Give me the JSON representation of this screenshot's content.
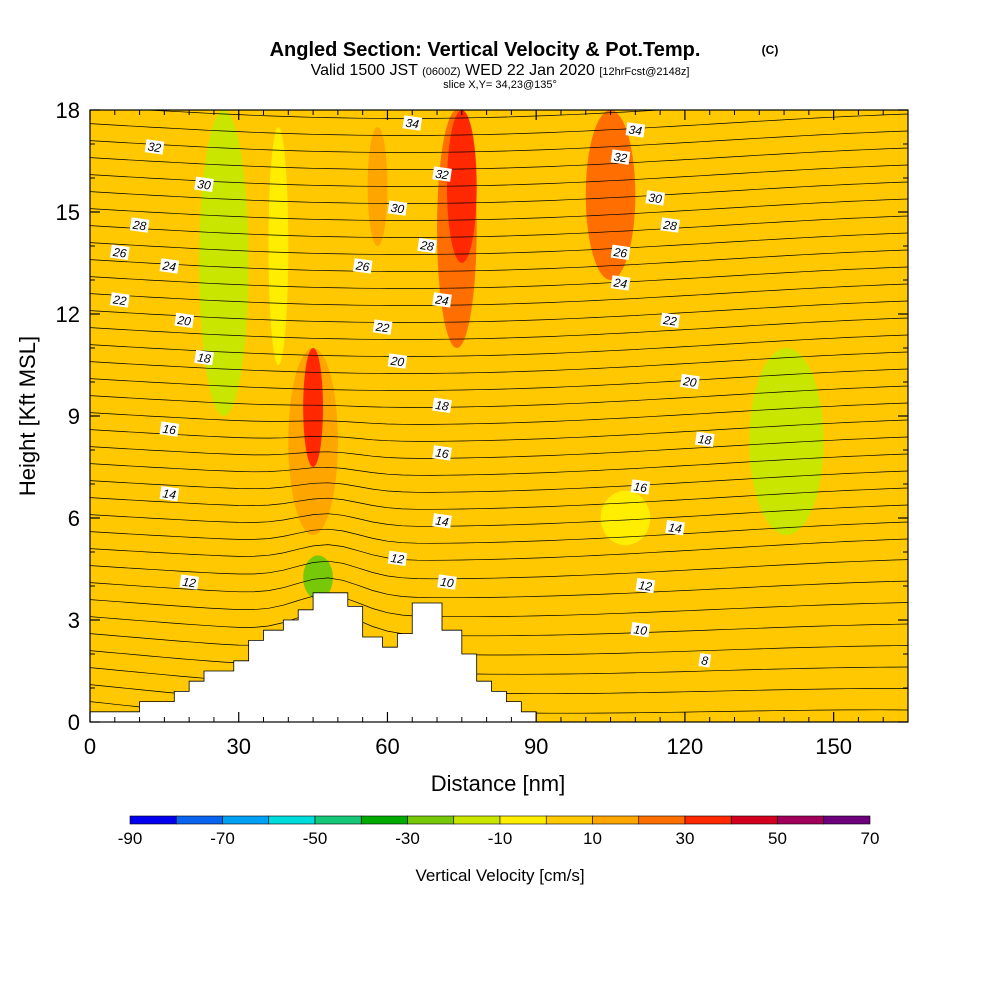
{
  "header": {
    "title": "Angled Section: Vertical Velocity & Pot.Temp.",
    "title_suffix": "(C)",
    "subtitle_pre": "Valid 1500 JST",
    "subtitle_z": "(0600Z)",
    "subtitle_date": "WED 22 Jan 2020",
    "subtitle_fcst": "[12hrFcst@2148z]",
    "slice": "slice X,Y= 34,23@135°"
  },
  "chart_data": {
    "type": "heatmap",
    "title": "Angled Section: Vertical Velocity & Pot.Temp.",
    "xlabel": "Distance [nm]",
    "ylabel": "Height [Kft MSL]",
    "xlim": [
      0,
      165
    ],
    "ylim": [
      0,
      18
    ],
    "x_ticks": [
      0,
      30,
      60,
      90,
      120,
      150
    ],
    "y_ticks": [
      0,
      3,
      6,
      9,
      12,
      15,
      18
    ],
    "colorbar": {
      "label": "Vertical Velocity [cm/s]",
      "boundaries": [
        -90,
        -80,
        -70,
        -60,
        -50,
        -40,
        -30,
        -20,
        -10,
        0,
        10,
        20,
        30,
        40,
        50,
        60,
        70
      ],
      "tick_labels": [
        "-90",
        "-70",
        "-50",
        "-30",
        "-10",
        "10",
        "30",
        "50",
        "70"
      ],
      "colors": [
        "#0000ee",
        "#0a64f0",
        "#00a0f5",
        "#00dcdc",
        "#14c878",
        "#00aa00",
        "#78c80a",
        "#c8e600",
        "#ffee00",
        "#ffc800",
        "#ffa500",
        "#ff6e00",
        "#ff2800",
        "#d2001e",
        "#a0005a",
        "#6e007d"
      ]
    },
    "background_value": 3,
    "velocity_cells": [
      {
        "x": [
          100,
          125
        ],
        "y": [
          14,
          18
        ],
        "value": 8
      },
      {
        "x": [
          3,
          40
        ],
        "y": [
          0,
          18
        ],
        "value": 8
      },
      {
        "x": [
          55,
          62
        ],
        "y": [
          12,
          18
        ],
        "value": 8
      },
      {
        "x": [
          100,
          110
        ],
        "y": [
          13,
          18
        ],
        "value": 22
      },
      {
        "x": [
          70,
          78
        ],
        "y": [
          11,
          18
        ],
        "value": 25
      },
      {
        "x": [
          72,
          78
        ],
        "y": [
          13.5,
          18
        ],
        "value": 35
      },
      {
        "x": [
          56,
          60
        ],
        "y": [
          14,
          17.5
        ],
        "value": 14
      },
      {
        "x": [
          22,
          32
        ],
        "y": [
          9,
          18
        ],
        "value": -12
      },
      {
        "x": [
          25,
          28
        ],
        "y": [
          14,
          17
        ],
        "value": -15
      },
      {
        "x": [
          36,
          40
        ],
        "y": [
          10.5,
          17.5
        ],
        "value": -8
      },
      {
        "x": [
          133,
          148
        ],
        "y": [
          5.5,
          11
        ],
        "value": -12
      },
      {
        "x": [
          103,
          113
        ],
        "y": [
          5.2,
          6.8
        ],
        "value": -6
      },
      {
        "x": [
          40,
          50
        ],
        "y": [
          5.5,
          11
        ],
        "value": 18
      },
      {
        "x": [
          43,
          47
        ],
        "y": [
          7.5,
          11
        ],
        "value": 32
      },
      {
        "x": [
          40,
          52
        ],
        "y": [
          0,
          5
        ],
        "value": 8
      },
      {
        "x": [
          89,
          120
        ],
        "y": [
          0,
          2.2
        ],
        "value": 8
      },
      {
        "x": [
          43,
          49
        ],
        "y": [
          3.6,
          4.9
        ],
        "value": -30
      },
      {
        "x": [
          145,
          165
        ],
        "y": [
          0,
          3.2
        ],
        "value": 8
      }
    ],
    "terrain": [
      [
        0,
        0.3
      ],
      [
        10,
        0.3
      ],
      [
        10,
        0.6
      ],
      [
        17,
        0.6
      ],
      [
        17,
        0.9
      ],
      [
        20,
        0.9
      ],
      [
        20,
        1.2
      ],
      [
        23,
        1.2
      ],
      [
        23,
        1.5
      ],
      [
        29,
        1.5
      ],
      [
        29,
        1.8
      ],
      [
        32,
        1.8
      ],
      [
        32,
        2.4
      ],
      [
        35,
        2.4
      ],
      [
        35,
        2.7
      ],
      [
        39,
        2.7
      ],
      [
        39,
        3.0
      ],
      [
        42,
        3.0
      ],
      [
        42,
        3.3
      ],
      [
        45,
        3.3
      ],
      [
        45,
        3.8
      ],
      [
        52,
        3.8
      ],
      [
        52,
        3.4
      ],
      [
        55,
        3.4
      ],
      [
        55,
        2.5
      ],
      [
        59,
        2.5
      ],
      [
        59,
        2.2
      ],
      [
        62,
        2.2
      ],
      [
        62,
        2.6
      ],
      [
        65,
        2.6
      ],
      [
        65,
        3.5
      ],
      [
        71,
        3.5
      ],
      [
        71,
        2.7
      ],
      [
        75,
        2.7
      ],
      [
        75,
        2.0
      ],
      [
        78,
        2.0
      ],
      [
        78,
        1.2
      ],
      [
        81,
        1.2
      ],
      [
        81,
        0.9
      ],
      [
        84,
        0.9
      ],
      [
        84,
        0.6
      ],
      [
        87,
        0.6
      ],
      [
        87,
        0.3
      ],
      [
        90,
        0.3
      ],
      [
        90,
        0
      ],
      [
        0,
        0
      ]
    ],
    "contour_labels": [
      {
        "text": "34",
        "x": 65,
        "y": 17.6
      },
      {
        "text": "34",
        "x": 110,
        "y": 17.4
      },
      {
        "text": "32",
        "x": 13,
        "y": 16.9
      },
      {
        "text": "32",
        "x": 71,
        "y": 16.1
      },
      {
        "text": "32",
        "x": 107,
        "y": 16.6
      },
      {
        "text": "30",
        "x": 23,
        "y": 15.8
      },
      {
        "text": "30",
        "x": 62,
        "y": 15.1
      },
      {
        "text": "30",
        "x": 114,
        "y": 15.4
      },
      {
        "text": "28",
        "x": 10,
        "y": 14.6
      },
      {
        "text": "28",
        "x": 68,
        "y": 14.0
      },
      {
        "text": "28",
        "x": 117,
        "y": 14.6
      },
      {
        "text": "26",
        "x": 6,
        "y": 13.8
      },
      {
        "text": "26",
        "x": 55,
        "y": 13.4
      },
      {
        "text": "26",
        "x": 107,
        "y": 13.8
      },
      {
        "text": "24",
        "x": 16,
        "y": 13.4
      },
      {
        "text": "24",
        "x": 71,
        "y": 12.4
      },
      {
        "text": "24",
        "x": 107,
        "y": 12.9
      },
      {
        "text": "22",
        "x": 6,
        "y": 12.4
      },
      {
        "text": "22",
        "x": 59,
        "y": 11.6
      },
      {
        "text": "22",
        "x": 117,
        "y": 11.8
      },
      {
        "text": "20",
        "x": 19,
        "y": 11.8
      },
      {
        "text": "20",
        "x": 62,
        "y": 10.6
      },
      {
        "text": "20",
        "x": 121,
        "y": 10.0
      },
      {
        "text": "18",
        "x": 23,
        "y": 10.7
      },
      {
        "text": "18",
        "x": 71,
        "y": 9.3
      },
      {
        "text": "18",
        "x": 124,
        "y": 8.3
      },
      {
        "text": "16",
        "x": 16,
        "y": 8.6
      },
      {
        "text": "16",
        "x": 71,
        "y": 7.9
      },
      {
        "text": "16",
        "x": 111,
        "y": 6.9
      },
      {
        "text": "14",
        "x": 16,
        "y": 6.7
      },
      {
        "text": "14",
        "x": 71,
        "y": 5.9
      },
      {
        "text": "14",
        "x": 118,
        "y": 5.7
      },
      {
        "text": "12",
        "x": 20,
        "y": 4.1
      },
      {
        "text": "12",
        "x": 62,
        "y": 4.8
      },
      {
        "text": "12",
        "x": 112,
        "y": 4.0
      },
      {
        "text": "10",
        "x": 72,
        "y": 4.1
      },
      {
        "text": "10",
        "x": 111,
        "y": 2.7
      },
      {
        "text": "8",
        "x": 124,
        "y": 1.8
      }
    ]
  }
}
